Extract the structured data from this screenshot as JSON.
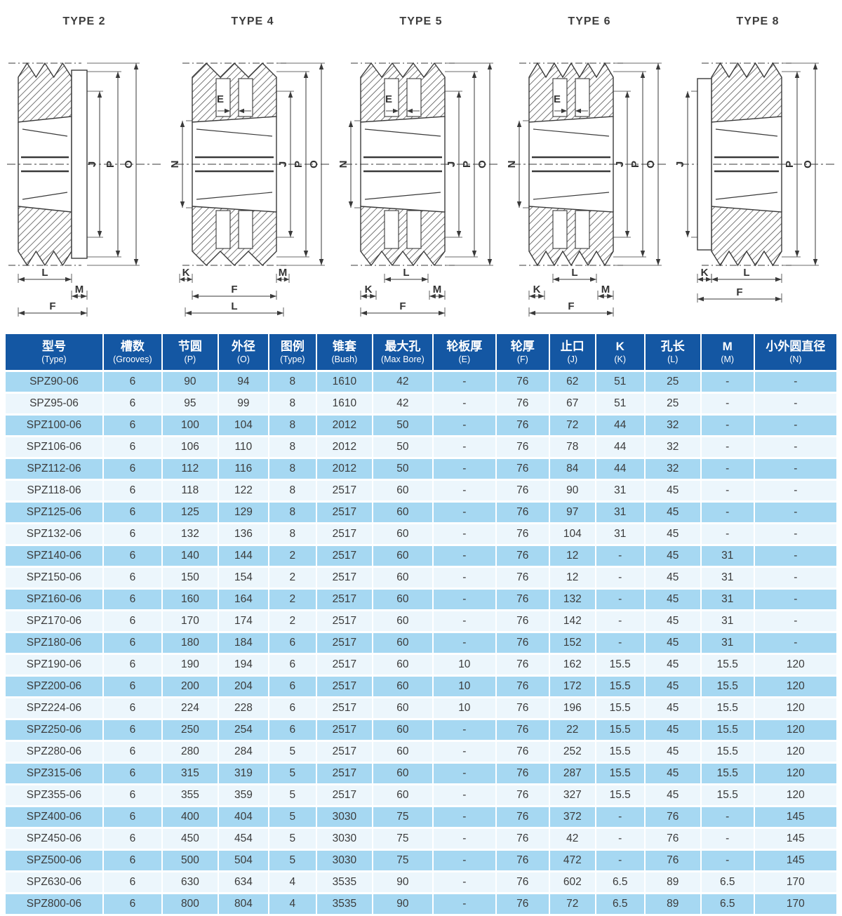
{
  "page": {
    "background": "#ffffff"
  },
  "drawings": {
    "items": [
      {
        "title": "TYPE 2",
        "variant": "flange-right",
        "teeth": 3,
        "inner_label": "",
        "left_dims": [],
        "right_dims": [
          "J",
          "P",
          "O"
        ],
        "bottom_dims": [
          "L",
          "M",
          "F"
        ]
      },
      {
        "title": "TYPE 4",
        "variant": "web",
        "teeth": 3,
        "inner_label": "E",
        "left_dims": [
          "N"
        ],
        "right_dims": [
          "J",
          "P",
          "O"
        ],
        "bottom_dims": [
          "K",
          "M",
          "F",
          "L"
        ]
      },
      {
        "title": "TYPE 5",
        "variant": "web",
        "teeth": 4,
        "inner_label": "E",
        "left_dims": [
          "N"
        ],
        "right_dims": [
          "J",
          "P",
          "O"
        ],
        "bottom_dims": [
          "L",
          "K",
          "M",
          "F"
        ]
      },
      {
        "title": "TYPE 6",
        "variant": "web",
        "teeth": 5,
        "inner_label": "E",
        "left_dims": [
          "N"
        ],
        "right_dims": [
          "J",
          "P",
          "O"
        ],
        "bottom_dims": [
          "L",
          "K",
          "M",
          "F"
        ]
      },
      {
        "title": "TYPE 8",
        "variant": "flange-left",
        "teeth": 4,
        "inner_label": "",
        "left_dims": [
          "J"
        ],
        "right_dims": [
          "P",
          "O"
        ],
        "bottom_dims": [
          "K",
          "L",
          "F"
        ]
      }
    ]
  },
  "table": {
    "colors": {
      "header_bg": "#1457a3",
      "row_blue": "#a6d8f2",
      "row_pale": "#ecf6fc",
      "header_text": "#ffffff",
      "body_text": "#3b3b3b"
    },
    "columns": [
      {
        "zh": "型号",
        "sub": "(Type)"
      },
      {
        "zh": "槽数",
        "sub": "(Grooves)"
      },
      {
        "zh": "节圆",
        "sub": "(P)"
      },
      {
        "zh": "外径",
        "sub": "(O)"
      },
      {
        "zh": "图例",
        "sub": "(Type)"
      },
      {
        "zh": "锥套",
        "sub": "(Bush)"
      },
      {
        "zh": "最大孔",
        "sub": "(Max Bore)"
      },
      {
        "zh": "轮板厚",
        "sub": "(E)"
      },
      {
        "zh": "轮厚",
        "sub": "(F)"
      },
      {
        "zh": "止口",
        "sub": "(J)"
      },
      {
        "zh": "K",
        "sub": "(K)"
      },
      {
        "zh": "孔长",
        "sub": "(L)"
      },
      {
        "zh": "M",
        "sub": "(M)"
      },
      {
        "zh": "小外圆直径",
        "sub": "(N)"
      }
    ],
    "rows": [
      [
        "SPZ90-06",
        "6",
        "90",
        "94",
        "8",
        "1610",
        "42",
        "-",
        "76",
        "62",
        "51",
        "25",
        "-",
        "-"
      ],
      [
        "SPZ95-06",
        "6",
        "95",
        "99",
        "8",
        "1610",
        "42",
        "-",
        "76",
        "67",
        "51",
        "25",
        "-",
        "-"
      ],
      [
        "SPZ100-06",
        "6",
        "100",
        "104",
        "8",
        "2012",
        "50",
        "-",
        "76",
        "72",
        "44",
        "32",
        "-",
        "-"
      ],
      [
        "SPZ106-06",
        "6",
        "106",
        "110",
        "8",
        "2012",
        "50",
        "-",
        "76",
        "78",
        "44",
        "32",
        "-",
        "-"
      ],
      [
        "SPZ112-06",
        "6",
        "112",
        "116",
        "8",
        "2012",
        "50",
        "-",
        "76",
        "84",
        "44",
        "32",
        "-",
        "-"
      ],
      [
        "SPZ118-06",
        "6",
        "118",
        "122",
        "8",
        "2517",
        "60",
        "-",
        "76",
        "90",
        "31",
        "45",
        "-",
        "-"
      ],
      [
        "SPZ125-06",
        "6",
        "125",
        "129",
        "8",
        "2517",
        "60",
        "-",
        "76",
        "97",
        "31",
        "45",
        "-",
        "-"
      ],
      [
        "SPZ132-06",
        "6",
        "132",
        "136",
        "8",
        "2517",
        "60",
        "-",
        "76",
        "104",
        "31",
        "45",
        "-",
        "-"
      ],
      [
        "SPZ140-06",
        "6",
        "140",
        "144",
        "2",
        "2517",
        "60",
        "-",
        "76",
        "12",
        "-",
        "45",
        "31",
        "-"
      ],
      [
        "SPZ150-06",
        "6",
        "150",
        "154",
        "2",
        "2517",
        "60",
        "-",
        "76",
        "12",
        "-",
        "45",
        "31",
        "-"
      ],
      [
        "SPZ160-06",
        "6",
        "160",
        "164",
        "2",
        "2517",
        "60",
        "-",
        "76",
        "132",
        "-",
        "45",
        "31",
        "-"
      ],
      [
        "SPZ170-06",
        "6",
        "170",
        "174",
        "2",
        "2517",
        "60",
        "-",
        "76",
        "142",
        "-",
        "45",
        "31",
        "-"
      ],
      [
        "SPZ180-06",
        "6",
        "180",
        "184",
        "6",
        "2517",
        "60",
        "-",
        "76",
        "152",
        "-",
        "45",
        "31",
        "-"
      ],
      [
        "SPZ190-06",
        "6",
        "190",
        "194",
        "6",
        "2517",
        "60",
        "10",
        "76",
        "162",
        "15.5",
        "45",
        "15.5",
        "120"
      ],
      [
        "SPZ200-06",
        "6",
        "200",
        "204",
        "6",
        "2517",
        "60",
        "10",
        "76",
        "172",
        "15.5",
        "45",
        "15.5",
        "120"
      ],
      [
        "SPZ224-06",
        "6",
        "224",
        "228",
        "6",
        "2517",
        "60",
        "10",
        "76",
        "196",
        "15.5",
        "45",
        "15.5",
        "120"
      ],
      [
        "SPZ250-06",
        "6",
        "250",
        "254",
        "6",
        "2517",
        "60",
        "-",
        "76",
        "22",
        "15.5",
        "45",
        "15.5",
        "120"
      ],
      [
        "SPZ280-06",
        "6",
        "280",
        "284",
        "5",
        "2517",
        "60",
        "-",
        "76",
        "252",
        "15.5",
        "45",
        "15.5",
        "120"
      ],
      [
        "SPZ315-06",
        "6",
        "315",
        "319",
        "5",
        "2517",
        "60",
        "-",
        "76",
        "287",
        "15.5",
        "45",
        "15.5",
        "120"
      ],
      [
        "SPZ355-06",
        "6",
        "355",
        "359",
        "5",
        "2517",
        "60",
        "-",
        "76",
        "327",
        "15.5",
        "45",
        "15.5",
        "120"
      ],
      [
        "SPZ400-06",
        "6",
        "400",
        "404",
        "5",
        "3030",
        "75",
        "-",
        "76",
        "372",
        "-",
        "76",
        "-",
        "145"
      ],
      [
        "SPZ450-06",
        "6",
        "450",
        "454",
        "5",
        "3030",
        "75",
        "-",
        "76",
        "42",
        "-",
        "76",
        "-",
        "145"
      ],
      [
        "SPZ500-06",
        "6",
        "500",
        "504",
        "5",
        "3030",
        "75",
        "-",
        "76",
        "472",
        "-",
        "76",
        "-",
        "145"
      ],
      [
        "SPZ630-06",
        "6",
        "630",
        "634",
        "4",
        "3535",
        "90",
        "-",
        "76",
        "602",
        "6.5",
        "89",
        "6.5",
        "170"
      ],
      [
        "SPZ800-06",
        "6",
        "800",
        "804",
        "4",
        "3535",
        "90",
        "-",
        "76",
        "72",
        "6.5",
        "89",
        "6.5",
        "170"
      ]
    ]
  }
}
